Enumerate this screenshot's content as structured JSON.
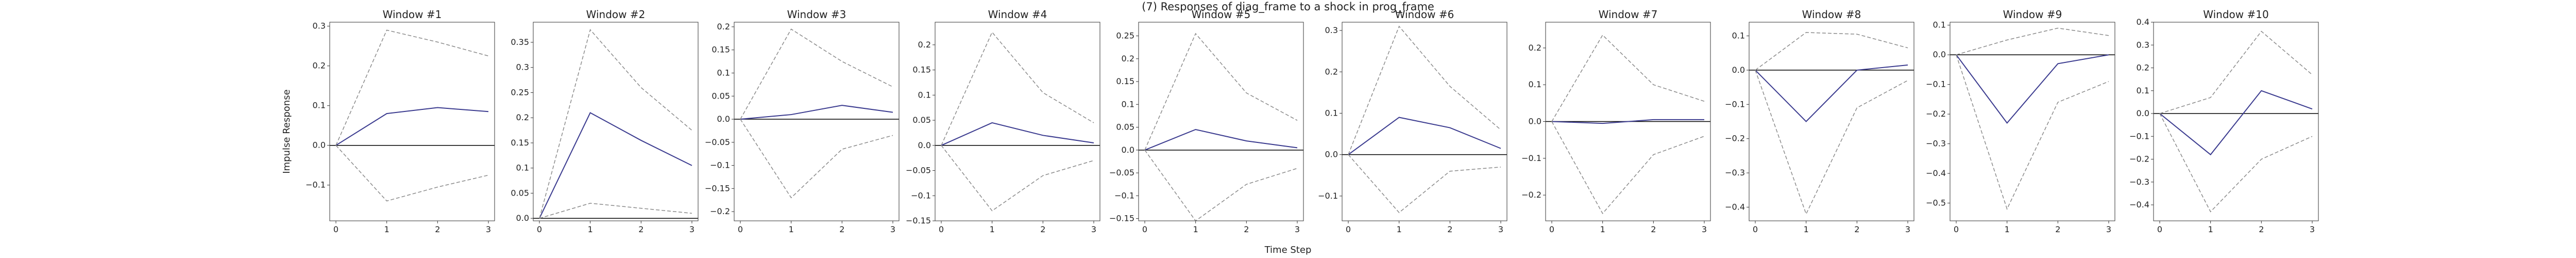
{
  "figure": {
    "suptitle": "(7) Responses of diag_frame to a shock in prog_frame",
    "xlabel": "Time Step",
    "ylabel": "Impulse Response"
  },
  "colors": {
    "response": "#3b3b8f",
    "bands": "#8a8a8a",
    "zero_line": "#000000",
    "axes": "#333333"
  },
  "chart_data": [
    {
      "type": "line",
      "title": "Window #1",
      "x": [
        0,
        1,
        2,
        3
      ],
      "series": [
        {
          "values": [
            0,
            0.08,
            0.095,
            0.085
          ]
        },
        {
          "values": [
            0,
            0.29,
            0.26,
            0.225
          ]
        },
        {
          "values": [
            0,
            -0.14,
            -0.105,
            -0.075
          ]
        }
      ],
      "ylim": [
        -0.19,
        0.31
      ],
      "yticks": [
        -0.1,
        0.0,
        0.1,
        0.2,
        0.3
      ],
      "xticks": [
        0,
        1,
        2,
        3
      ]
    },
    {
      "type": "line",
      "title": "Window #2",
      "x": [
        0,
        1,
        2,
        3
      ],
      "series": [
        {
          "values": [
            0,
            0.21,
            0.155,
            0.105
          ]
        },
        {
          "values": [
            0,
            0.375,
            0.26,
            0.175
          ]
        },
        {
          "values": [
            0,
            0.03,
            0.02,
            0.01
          ]
        }
      ],
      "ylim": [
        -0.005,
        0.39
      ],
      "yticks": [
        0.0,
        0.05,
        0.1,
        0.15,
        0.2,
        0.25,
        0.3,
        0.35
      ],
      "xticks": [
        0,
        1,
        2,
        3
      ]
    },
    {
      "type": "line",
      "title": "Window #3",
      "x": [
        0,
        1,
        2,
        3
      ],
      "series": [
        {
          "values": [
            0,
            0.01,
            0.03,
            0.015
          ]
        },
        {
          "values": [
            0,
            0.195,
            0.125,
            0.07
          ]
        },
        {
          "values": [
            0,
            -0.17,
            -0.065,
            -0.035
          ]
        }
      ],
      "ylim": [
        -0.22,
        0.21
      ],
      "yticks": [
        -0.2,
        -0.15,
        -0.1,
        -0.05,
        0.0,
        0.05,
        0.1,
        0.15,
        0.2
      ],
      "xticks": [
        0,
        1,
        2,
        3
      ]
    },
    {
      "type": "line",
      "title": "Window #4",
      "x": [
        0,
        1,
        2,
        3
      ],
      "series": [
        {
          "values": [
            0,
            0.045,
            0.02,
            0.005
          ]
        },
        {
          "values": [
            0,
            0.225,
            0.105,
            0.045
          ]
        },
        {
          "values": [
            0,
            -0.13,
            -0.06,
            -0.03
          ]
        }
      ],
      "ylim": [
        -0.15,
        0.245
      ],
      "yticks": [
        -0.15,
        -0.1,
        -0.05,
        0.0,
        0.05,
        0.1,
        0.15,
        0.2
      ],
      "xticks": [
        0,
        1,
        2,
        3
      ]
    },
    {
      "type": "line",
      "title": "Window #5",
      "x": [
        0,
        1,
        2,
        3
      ],
      "series": [
        {
          "values": [
            0,
            0.045,
            0.02,
            0.005
          ]
        },
        {
          "values": [
            0,
            0.255,
            0.125,
            0.065
          ]
        },
        {
          "values": [
            0,
            -0.155,
            -0.075,
            -0.04
          ]
        }
      ],
      "ylim": [
        -0.155,
        0.28
      ],
      "yticks": [
        -0.15,
        -0.1,
        -0.05,
        0.0,
        0.05,
        0.1,
        0.15,
        0.2,
        0.25
      ],
      "xticks": [
        0,
        1,
        2,
        3
      ]
    },
    {
      "type": "line",
      "title": "Window #6",
      "x": [
        0,
        1,
        2,
        3
      ],
      "series": [
        {
          "values": [
            0,
            0.09,
            0.065,
            0.015
          ]
        },
        {
          "values": [
            0,
            0.31,
            0.165,
            0.06
          ]
        },
        {
          "values": [
            0,
            -0.14,
            -0.04,
            -0.03
          ]
        }
      ],
      "ylim": [
        -0.16,
        0.32
      ],
      "yticks": [
        -0.1,
        0.0,
        0.1,
        0.2,
        0.3
      ],
      "xticks": [
        0,
        1,
        2,
        3
      ]
    },
    {
      "type": "line",
      "title": "Window #7",
      "x": [
        0,
        1,
        2,
        3
      ],
      "series": [
        {
          "values": [
            0,
            -0.005,
            0.005,
            0.005
          ]
        },
        {
          "values": [
            0,
            0.235,
            0.1,
            0.055
          ]
        },
        {
          "values": [
            0,
            -0.25,
            -0.09,
            -0.04
          ]
        }
      ],
      "ylim": [
        -0.27,
        0.27
      ],
      "yticks": [
        -0.2,
        -0.1,
        0.0,
        0.1,
        0.2
      ],
      "xticks": [
        0,
        1,
        2,
        3
      ]
    },
    {
      "type": "line",
      "title": "Window #8",
      "x": [
        0,
        1,
        2,
        3
      ],
      "series": [
        {
          "values": [
            0,
            -0.15,
            0.0,
            0.015
          ]
        },
        {
          "values": [
            0,
            0.11,
            0.105,
            0.065
          ]
        },
        {
          "values": [
            0,
            -0.42,
            -0.11,
            -0.03
          ]
        }
      ],
      "ylim": [
        -0.44,
        0.14
      ],
      "yticks": [
        -0.4,
        -0.3,
        -0.2,
        -0.1,
        0.0,
        0.1
      ],
      "xticks": [
        0,
        1,
        2,
        3
      ]
    },
    {
      "type": "line",
      "title": "Window #9",
      "x": [
        0,
        1,
        2,
        3
      ],
      "series": [
        {
          "values": [
            0,
            -0.23,
            -0.03,
            0.0
          ]
        },
        {
          "values": [
            0,
            0.05,
            0.09,
            0.065
          ]
        },
        {
          "values": [
            0,
            -0.52,
            -0.16,
            -0.09
          ]
        }
      ],
      "ylim": [
        -0.56,
        0.11
      ],
      "yticks": [
        -0.5,
        -0.4,
        -0.3,
        -0.2,
        -0.1,
        0.0,
        0.1
      ],
      "xticks": [
        0,
        1,
        2,
        3
      ]
    },
    {
      "type": "line",
      "title": "Window #10",
      "x": [
        0,
        1,
        2,
        3
      ],
      "series": [
        {
          "values": [
            0,
            -0.18,
            0.1,
            0.02
          ]
        },
        {
          "values": [
            0,
            0.07,
            0.36,
            0.17
          ]
        },
        {
          "values": [
            0,
            -0.43,
            -0.2,
            -0.1
          ]
        }
      ],
      "ylim": [
        -0.47,
        0.4
      ],
      "yticks": [
        -0.4,
        -0.3,
        -0.2,
        -0.1,
        0.0,
        0.1,
        0.2,
        0.3,
        0.4
      ],
      "xticks": [
        0,
        1,
        2,
        3
      ]
    }
  ]
}
